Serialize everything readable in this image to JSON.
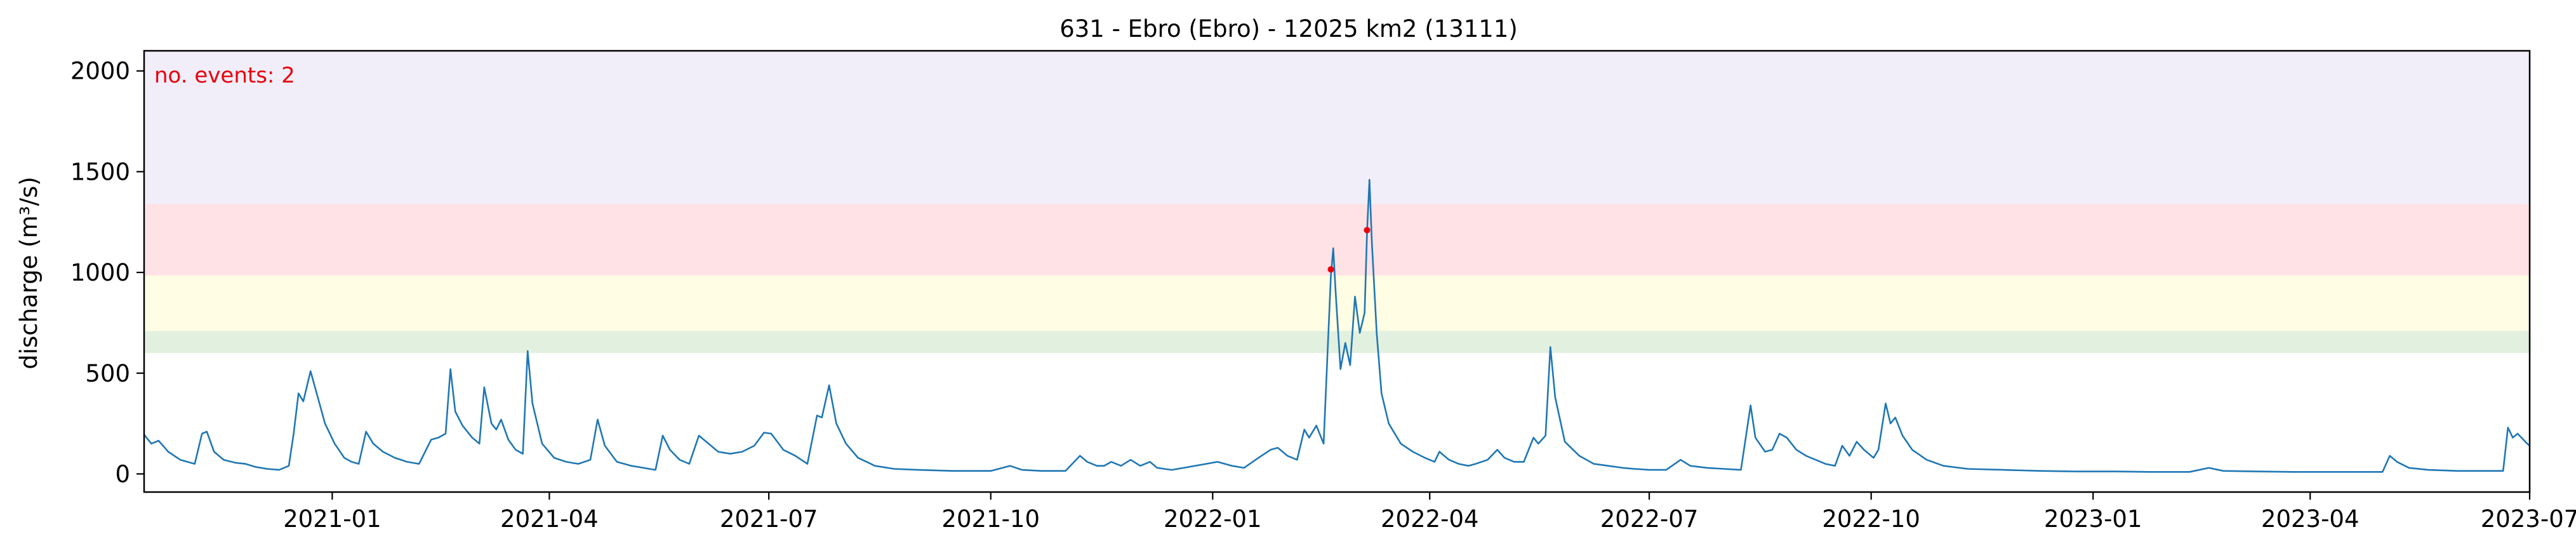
{
  "chart_data": {
    "type": "line",
    "title": "631 - Ebro (Ebro) - 12025 km2 (13111)",
    "xlabel": "",
    "ylabel": "discharge (m³/s)",
    "xlim": [
      "2020-10-15",
      "2023-07-01"
    ],
    "ylim": [
      -90,
      2100
    ],
    "x_ticks": [
      {
        "date": "2021-01-01",
        "label": "2021-01"
      },
      {
        "date": "2021-04-01",
        "label": "2021-04"
      },
      {
        "date": "2021-07-01",
        "label": "2021-07"
      },
      {
        "date": "2021-10-01",
        "label": "2021-10"
      },
      {
        "date": "2022-01-01",
        "label": "2022-01"
      },
      {
        "date": "2022-04-01",
        "label": "2022-04"
      },
      {
        "date": "2022-07-01",
        "label": "2022-07"
      },
      {
        "date": "2022-10-01",
        "label": "2022-10"
      },
      {
        "date": "2023-01-01",
        "label": "2023-01"
      },
      {
        "date": "2023-04-01",
        "label": "2023-04"
      },
      {
        "date": "2023-07-01",
        "label": "2023-07"
      }
    ],
    "y_ticks": [
      0,
      500,
      1000,
      1500,
      2000
    ],
    "grid": false,
    "threshold_bands": [
      {
        "from": 600,
        "to": 710,
        "color": "#e2f0e0"
      },
      {
        "from": 710,
        "to": 985,
        "color": "#fffde3"
      },
      {
        "from": 985,
        "to": 1340,
        "color": "#ffe2e6"
      },
      {
        "from": 1340,
        "to": 2100,
        "color": "#f1eef9"
      }
    ],
    "series": [
      {
        "color": "#1f77b4",
        "points": [
          [
            "2020-10-15",
            195
          ],
          [
            "2020-10-18",
            150
          ],
          [
            "2020-10-21",
            165
          ],
          [
            "2020-10-25",
            110
          ],
          [
            "2020-10-30",
            70
          ],
          [
            "2020-11-05",
            50
          ],
          [
            "2020-11-08",
            200
          ],
          [
            "2020-11-10",
            210
          ],
          [
            "2020-11-13",
            110
          ],
          [
            "2020-11-17",
            70
          ],
          [
            "2020-11-22",
            55
          ],
          [
            "2020-11-26",
            50
          ],
          [
            "2020-11-30",
            35
          ],
          [
            "2020-12-05",
            25
          ],
          [
            "2020-12-10",
            20
          ],
          [
            "2020-12-14",
            40
          ],
          [
            "2020-12-16",
            200
          ],
          [
            "2020-12-18",
            400
          ],
          [
            "2020-12-20",
            360
          ],
          [
            "2020-12-23",
            510
          ],
          [
            "2020-12-26",
            380
          ],
          [
            "2020-12-29",
            250
          ],
          [
            "2021-01-02",
            150
          ],
          [
            "2021-01-06",
            80
          ],
          [
            "2021-01-09",
            60
          ],
          [
            "2021-01-12",
            50
          ],
          [
            "2021-01-15",
            210
          ],
          [
            "2021-01-18",
            150
          ],
          [
            "2021-01-22",
            110
          ],
          [
            "2021-01-27",
            80
          ],
          [
            "2021-02-01",
            60
          ],
          [
            "2021-02-06",
            50
          ],
          [
            "2021-02-11",
            170
          ],
          [
            "2021-02-14",
            180
          ],
          [
            "2021-02-17",
            200
          ],
          [
            "2021-02-19",
            520
          ],
          [
            "2021-02-21",
            310
          ],
          [
            "2021-02-24",
            240
          ],
          [
            "2021-02-28",
            180
          ],
          [
            "2021-03-03",
            150
          ],
          [
            "2021-03-05",
            430
          ],
          [
            "2021-03-08",
            250
          ],
          [
            "2021-03-10",
            220
          ],
          [
            "2021-03-12",
            270
          ],
          [
            "2021-03-15",
            170
          ],
          [
            "2021-03-18",
            120
          ],
          [
            "2021-03-21",
            100
          ],
          [
            "2021-03-23",
            610
          ],
          [
            "2021-03-25",
            350
          ],
          [
            "2021-03-29",
            150
          ],
          [
            "2021-04-03",
            80
          ],
          [
            "2021-04-08",
            60
          ],
          [
            "2021-04-13",
            50
          ],
          [
            "2021-04-18",
            70
          ],
          [
            "2021-04-21",
            270
          ],
          [
            "2021-04-24",
            140
          ],
          [
            "2021-04-29",
            60
          ],
          [
            "2021-05-05",
            40
          ],
          [
            "2021-05-10",
            30
          ],
          [
            "2021-05-15",
            20
          ],
          [
            "2021-05-18",
            190
          ],
          [
            "2021-05-21",
            120
          ],
          [
            "2021-05-25",
            70
          ],
          [
            "2021-05-29",
            50
          ],
          [
            "2021-06-02",
            190
          ],
          [
            "2021-06-06",
            150
          ],
          [
            "2021-06-10",
            110
          ],
          [
            "2021-06-15",
            100
          ],
          [
            "2021-06-20",
            110
          ],
          [
            "2021-06-25",
            140
          ],
          [
            "2021-06-29",
            205
          ],
          [
            "2021-07-02",
            200
          ],
          [
            "2021-07-07",
            120
          ],
          [
            "2021-07-12",
            90
          ],
          [
            "2021-07-17",
            50
          ],
          [
            "2021-07-21",
            290
          ],
          [
            "2021-07-23",
            280
          ],
          [
            "2021-07-26",
            440
          ],
          [
            "2021-07-29",
            250
          ],
          [
            "2021-08-02",
            150
          ],
          [
            "2021-08-07",
            80
          ],
          [
            "2021-08-14",
            40
          ],
          [
            "2021-08-22",
            25
          ],
          [
            "2021-09-01",
            20
          ],
          [
            "2021-09-15",
            15
          ],
          [
            "2021-10-01",
            15
          ],
          [
            "2021-10-09",
            40
          ],
          [
            "2021-10-14",
            20
          ],
          [
            "2021-10-22",
            15
          ],
          [
            "2021-11-01",
            15
          ],
          [
            "2021-11-07",
            90
          ],
          [
            "2021-11-10",
            60
          ],
          [
            "2021-11-14",
            40
          ],
          [
            "2021-11-17",
            40
          ],
          [
            "2021-11-20",
            60
          ],
          [
            "2021-11-24",
            40
          ],
          [
            "2021-11-28",
            70
          ],
          [
            "2021-12-02",
            40
          ],
          [
            "2021-12-06",
            60
          ],
          [
            "2021-12-09",
            30
          ],
          [
            "2021-12-15",
            20
          ],
          [
            "2021-12-20",
            30
          ],
          [
            "2022-01-03",
            60
          ],
          [
            "2022-01-09",
            40
          ],
          [
            "2022-01-14",
            30
          ],
          [
            "2022-01-20",
            80
          ],
          [
            "2022-01-25",
            120
          ],
          [
            "2022-01-28",
            130
          ],
          [
            "2022-02-01",
            90
          ],
          [
            "2022-02-05",
            70
          ],
          [
            "2022-02-08",
            220
          ],
          [
            "2022-02-10",
            180
          ],
          [
            "2022-02-13",
            240
          ],
          [
            "2022-02-16",
            150
          ],
          [
            "2022-02-19",
            980
          ],
          [
            "2022-02-20",
            1120
          ],
          [
            "2022-02-21",
            900
          ],
          [
            "2022-02-23",
            520
          ],
          [
            "2022-02-25",
            650
          ],
          [
            "2022-02-27",
            540
          ],
          [
            "2022-03-01",
            880
          ],
          [
            "2022-03-03",
            700
          ],
          [
            "2022-03-05",
            800
          ],
          [
            "2022-03-06",
            1200
          ],
          [
            "2022-03-07",
            1460
          ],
          [
            "2022-03-08",
            1150
          ],
          [
            "2022-03-10",
            700
          ],
          [
            "2022-03-12",
            400
          ],
          [
            "2022-03-15",
            250
          ],
          [
            "2022-03-20",
            150
          ],
          [
            "2022-03-25",
            110
          ],
          [
            "2022-03-30",
            80
          ],
          [
            "2022-04-03",
            60
          ],
          [
            "2022-04-05",
            110
          ],
          [
            "2022-04-09",
            70
          ],
          [
            "2022-04-13",
            50
          ],
          [
            "2022-04-17",
            40
          ],
          [
            "2022-04-20",
            50
          ],
          [
            "2022-04-25",
            70
          ],
          [
            "2022-04-29",
            120
          ],
          [
            "2022-05-02",
            80
          ],
          [
            "2022-05-06",
            60
          ],
          [
            "2022-05-10",
            60
          ],
          [
            "2022-05-14",
            180
          ],
          [
            "2022-05-16",
            150
          ],
          [
            "2022-05-19",
            190
          ],
          [
            "2022-05-21",
            630
          ],
          [
            "2022-05-23",
            380
          ],
          [
            "2022-05-27",
            160
          ],
          [
            "2022-06-02",
            90
          ],
          [
            "2022-06-08",
            50
          ],
          [
            "2022-06-14",
            40
          ],
          [
            "2022-06-20",
            30
          ],
          [
            "2022-06-25",
            25
          ],
          [
            "2022-07-01",
            20
          ],
          [
            "2022-07-08",
            20
          ],
          [
            "2022-07-14",
            70
          ],
          [
            "2022-07-18",
            40
          ],
          [
            "2022-07-25",
            30
          ],
          [
            "2022-08-01",
            25
          ],
          [
            "2022-08-08",
            20
          ],
          [
            "2022-08-12",
            340
          ],
          [
            "2022-08-14",
            180
          ],
          [
            "2022-08-18",
            110
          ],
          [
            "2022-08-21",
            120
          ],
          [
            "2022-08-24",
            200
          ],
          [
            "2022-08-27",
            180
          ],
          [
            "2022-08-31",
            120
          ],
          [
            "2022-09-04",
            90
          ],
          [
            "2022-09-08",
            70
          ],
          [
            "2022-09-12",
            50
          ],
          [
            "2022-09-16",
            40
          ],
          [
            "2022-09-19",
            140
          ],
          [
            "2022-09-22",
            90
          ],
          [
            "2022-09-25",
            160
          ],
          [
            "2022-09-28",
            120
          ],
          [
            "2022-10-02",
            80
          ],
          [
            "2022-10-04",
            120
          ],
          [
            "2022-10-07",
            350
          ],
          [
            "2022-10-09",
            250
          ],
          [
            "2022-10-11",
            280
          ],
          [
            "2022-10-14",
            190
          ],
          [
            "2022-10-18",
            120
          ],
          [
            "2022-10-24",
            70
          ],
          [
            "2022-10-31",
            40
          ],
          [
            "2022-11-10",
            25
          ],
          [
            "2022-11-25",
            20
          ],
          [
            "2022-12-10",
            15
          ],
          [
            "2022-12-25",
            12
          ],
          [
            "2023-01-10",
            12
          ],
          [
            "2023-01-25",
            10
          ],
          [
            "2023-02-10",
            10
          ],
          [
            "2023-02-18",
            30
          ],
          [
            "2023-02-24",
            15
          ],
          [
            "2023-03-10",
            12
          ],
          [
            "2023-03-25",
            10
          ],
          [
            "2023-04-10",
            10
          ],
          [
            "2023-04-25",
            10
          ],
          [
            "2023-05-01",
            10
          ],
          [
            "2023-05-04",
            90
          ],
          [
            "2023-05-07",
            60
          ],
          [
            "2023-05-12",
            30
          ],
          [
            "2023-05-20",
            20
          ],
          [
            "2023-06-01",
            15
          ],
          [
            "2023-06-10",
            15
          ],
          [
            "2023-06-20",
            15
          ],
          [
            "2023-06-22",
            230
          ],
          [
            "2023-06-24",
            180
          ],
          [
            "2023-06-26",
            200
          ],
          [
            "2023-06-30",
            150
          ],
          [
            "2023-07-01",
            140
          ]
        ]
      }
    ],
    "events": [
      {
        "date": "2022-02-19",
        "value": 1015,
        "color": "#e8000b"
      },
      {
        "date": "2022-03-06",
        "value": 1210,
        "color": "#e8000b"
      }
    ],
    "annotation": {
      "text": "no. events: 2",
      "color": "#e8000b",
      "position": "top-left"
    }
  }
}
